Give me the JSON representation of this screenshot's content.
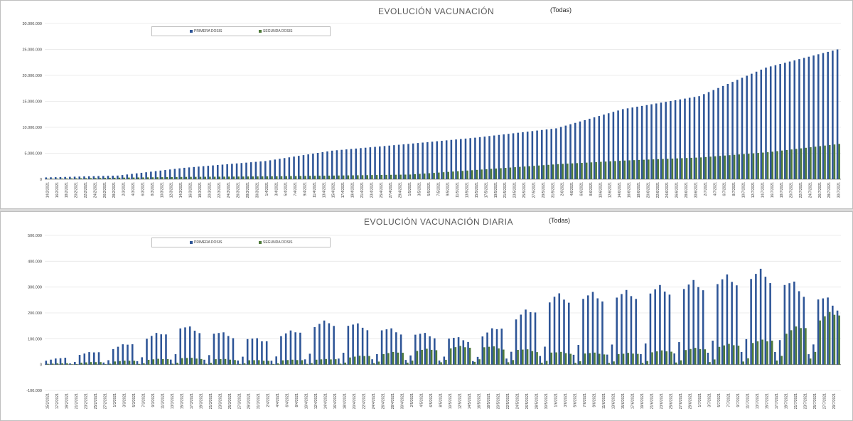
{
  "colors": {
    "primera": "#2e5597",
    "segunda": "#4f7a3a",
    "grid": "#e6e6e6",
    "axis": "#7f7f7f"
  },
  "chart_data": [
    {
      "type": "bar",
      "title": "EVOLUCIÓN VACUNACIÓN",
      "filter": "(Todas)",
      "x_start": "14/2/2021",
      "x_end": "30/7/2021",
      "x_label_step_days": 2,
      "ylim": [
        0,
        30000000
      ],
      "yticks": [
        "0",
        "5.000.000",
        "10.000.000",
        "15.000.000",
        "20.000.000",
        "25.000.000",
        "30.000.000"
      ],
      "legend": "top-left",
      "grid": true,
      "series": [
        {
          "name": "PRIMERA DOSIS",
          "value_unit": "dosis acumuladas",
          "knots": [
            [
              "14/2/2021",
              350000
            ],
            [
              "1/3/2021",
              700000
            ],
            [
              "15/3/2021",
              2200000
            ],
            [
              "1/4/2021",
              3500000
            ],
            [
              "15/4/2021",
              5500000
            ],
            [
              "1/5/2021",
              6800000
            ],
            [
              "15/5/2021",
              8000000
            ],
            [
              "1/6/2021",
              9800000
            ],
            [
              "15/6/2021",
              13500000
            ],
            [
              "1/7/2021",
              16000000
            ],
            [
              "15/7/2021",
              21500000
            ],
            [
              "30/7/2021",
              25000000
            ]
          ]
        },
        {
          "name": "SEGUNDA DOSIS",
          "value_unit": "dosis acumuladas",
          "knots": [
            [
              "14/2/2021",
              80000
            ],
            [
              "1/3/2021",
              300000
            ],
            [
              "15/3/2021",
              450000
            ],
            [
              "1/4/2021",
              550000
            ],
            [
              "15/4/2021",
              700000
            ],
            [
              "1/5/2021",
              900000
            ],
            [
              "15/5/2021",
              1800000
            ],
            [
              "1/6/2021",
              2900000
            ],
            [
              "15/6/2021",
              3600000
            ],
            [
              "1/7/2021",
              4200000
            ],
            [
              "15/7/2021",
              5200000
            ],
            [
              "30/7/2021",
              6800000
            ]
          ]
        }
      ]
    },
    {
      "type": "bar",
      "title": "EVOLUCIÓN VACUNACIÓN DIARIA",
      "filter": "(Todas)",
      "x_start": "15/2/2021",
      "x_end": "30/7/2021",
      "x_label_step_days": 2,
      "ylim": [
        -100000,
        500000
      ],
      "yticks": [
        "-100.000",
        "0",
        "100.000",
        "200.000",
        "300.000",
        "400.000",
        "500.000"
      ],
      "legend": "top-left",
      "grid": true,
      "series": [
        {
          "name": "PRIMERA DOSIS",
          "value_unit": "dosis por día",
          "weekday_pattern": [
            0.3,
            1.0,
            1.05,
            1.1,
            1.0,
            0.95,
            0.15
          ],
          "knots": [
            [
              "15/2/2021",
              15000
            ],
            [
              "1/3/2021",
              60000
            ],
            [
              "15/3/2021",
              140000
            ],
            [
              "1/4/2021",
              90000
            ],
            [
              "15/4/2021",
              160000
            ],
            [
              "1/5/2021",
              120000
            ],
            [
              "15/5/2021",
              90000
            ],
            [
              "1/6/2021",
              250000
            ],
            [
              "15/6/2021",
              260000
            ],
            [
              "1/7/2021",
              300000
            ],
            [
              "15/7/2021",
              340000
            ],
            [
              "30/7/2021",
              220000
            ]
          ]
        },
        {
          "name": "SEGUNDA DOSIS",
          "value_unit": "dosis por día",
          "weekday_pattern": [
            0.3,
            1.0,
            1.05,
            1.1,
            1.0,
            0.95,
            0.15
          ],
          "knots": [
            [
              "15/2/2021",
              3000
            ],
            [
              "1/3/2021",
              12000
            ],
            [
              "15/3/2021",
              25000
            ],
            [
              "1/4/2021",
              15000
            ],
            [
              "15/4/2021",
              20000
            ],
            [
              "1/5/2021",
              50000
            ],
            [
              "15/5/2021",
              70000
            ],
            [
              "1/6/2021",
              45000
            ],
            [
              "15/6/2021",
              40000
            ],
            [
              "1/7/2021",
              60000
            ],
            [
              "15/7/2021",
              90000
            ],
            [
              "30/7/2021",
              200000
            ]
          ]
        }
      ]
    }
  ]
}
